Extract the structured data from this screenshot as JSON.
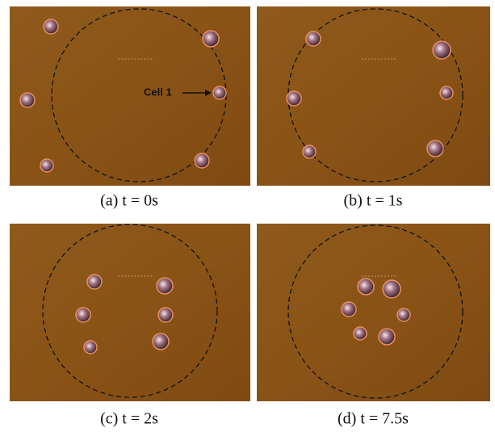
{
  "panels": [
    {
      "caption": "(a)  t = 0s",
      "annotation": "Cell 1"
    },
    {
      "caption": "(b)  t = 1s"
    },
    {
      "caption": "(c)  t = 2s"
    },
    {
      "caption": "(d)  t = 7.5s"
    }
  ]
}
